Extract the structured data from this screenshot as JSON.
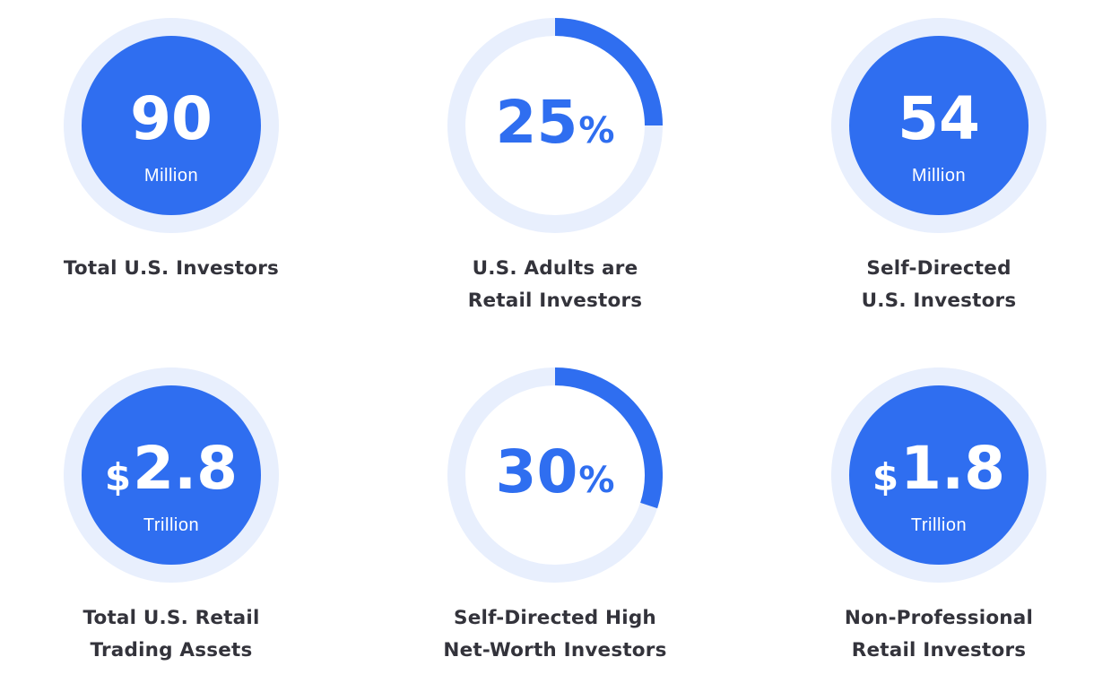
{
  "colors": {
    "accent": "#2f6ef0",
    "ring_track": "#e8effd",
    "caption_text": "#33333b",
    "disc_text": "#ffffff"
  },
  "stats": [
    {
      "kind": "disc",
      "value": "90",
      "unit": "Million",
      "caption": [
        "Total U.S. Investors"
      ]
    },
    {
      "kind": "percent",
      "value": "25",
      "symbol": "%",
      "percent": 25,
      "caption": [
        "U.S. Adults are",
        "Retail Investors"
      ]
    },
    {
      "kind": "disc",
      "value": "54",
      "unit": "Million",
      "caption": [
        "Self-Directed",
        "U.S. Investors"
      ]
    },
    {
      "kind": "disc",
      "currency": "$",
      "value": "2.8",
      "unit": "Trillion",
      "caption": [
        "Total U.S. Retail",
        "Trading Assets"
      ]
    },
    {
      "kind": "percent",
      "value": "30",
      "symbol": "%",
      "percent": 30,
      "caption": [
        "Self-Directed High",
        "Net-Worth Investors"
      ]
    },
    {
      "kind": "disc",
      "currency": "$",
      "value": "1.8",
      "unit": "Trillion",
      "caption": [
        "Non-Professional",
        "Retail Investors"
      ]
    }
  ]
}
